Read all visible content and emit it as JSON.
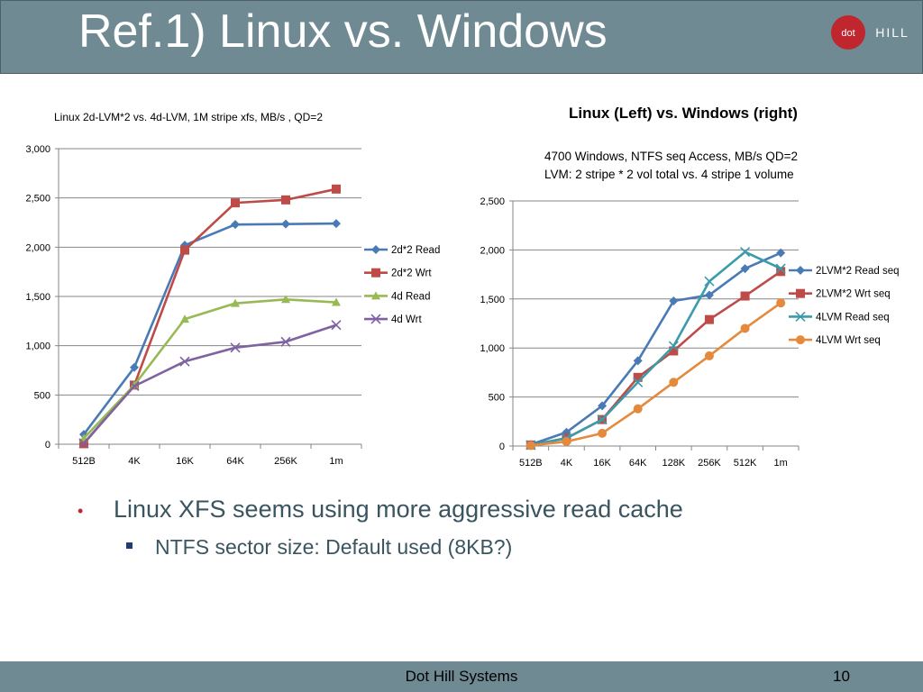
{
  "slide": {
    "title": "Ref.1) Linux vs. Windows",
    "logo_text": "dot HILL",
    "right_heading": "Linux  (Left) vs. Windows (right)",
    "bullets": [
      {
        "text": "Linux XFS seems using more aggressive read cache",
        "sub": [
          "NTFS sector size: Default used (8KB?)"
        ]
      }
    ],
    "footer": "Dot Hill Systems",
    "page_number": "10",
    "colors": {
      "bar": "#6f8a92",
      "brand_red": "#c0262e",
      "text": "#3a5560"
    }
  },
  "chart_data": [
    {
      "type": "line",
      "title": [
        "Linux 2d-LVM*2 vs. 4d-LVM, 1M stripe xfs, MB/s , QD=2"
      ],
      "categories": [
        "512B",
        "4K",
        "16K",
        "64K",
        "256K",
        "1m"
      ],
      "ylim": [
        0,
        3000
      ],
      "yticks": [
        0,
        500,
        1000,
        1500,
        2000,
        2500,
        3000
      ],
      "ytick_labels": [
        "0",
        "500",
        "1,000",
        "1,500",
        "2,000",
        "2,500",
        "3,000"
      ],
      "grid": true,
      "legend": "right",
      "series": [
        {
          "name": "2d*2 Read",
          "color": "#4a7ab5",
          "marker": "diamond",
          "values": [
            100,
            780,
            2020,
            2230,
            2235,
            2240
          ]
        },
        {
          "name": "2d*2 Wrt",
          "color": "#be4b48",
          "marker": "square",
          "values": [
            5,
            600,
            1970,
            2450,
            2480,
            2590
          ]
        },
        {
          "name": "4d Read",
          "color": "#98b954",
          "marker": "triangle",
          "values": [
            60,
            600,
            1270,
            1430,
            1470,
            1440
          ]
        },
        {
          "name": "4d Wrt",
          "color": "#7e62a1",
          "marker": "x",
          "values": [
            10,
            590,
            840,
            980,
            1040,
            1210
          ]
        }
      ]
    },
    {
      "type": "line",
      "title": [
        "4700 Windows, NTFS seq Access, MB/s  QD=2",
        "LVM: 2 stripe * 2 vol total vs.  4 stripe  1 volume"
      ],
      "categories": [
        "512B",
        "4K",
        "16K",
        "64K",
        "128K",
        "256K",
        "512K",
        "1m"
      ],
      "ylim": [
        0,
        2500
      ],
      "yticks": [
        0,
        500,
        1000,
        1500,
        2000,
        2500
      ],
      "ytick_labels": [
        "0",
        "500",
        "1,000",
        "1,500",
        "2,000",
        "2,500"
      ],
      "grid": true,
      "legend": "right",
      "series": [
        {
          "name": "2LVM*2 Read seq",
          "color": "#4a7ab5",
          "marker": "diamond",
          "values": [
            15,
            140,
            410,
            870,
            1480,
            1540,
            1810,
            1970
          ]
        },
        {
          "name": "2LVM*2 Wrt seq",
          "color": "#be4b48",
          "marker": "square",
          "values": [
            10,
            80,
            270,
            700,
            970,
            1290,
            1530,
            1780
          ]
        },
        {
          "name": "4LVM Read seq",
          "color": "#3a9cab",
          "marker": "x",
          "values": [
            10,
            80,
            270,
            650,
            1020,
            1680,
            1980,
            1810
          ]
        },
        {
          "name": "4LVM Wrt seq",
          "color": "#e58a3c",
          "marker": "circle",
          "values": [
            5,
            45,
            130,
            380,
            650,
            920,
            1200,
            1460
          ]
        }
      ]
    }
  ]
}
